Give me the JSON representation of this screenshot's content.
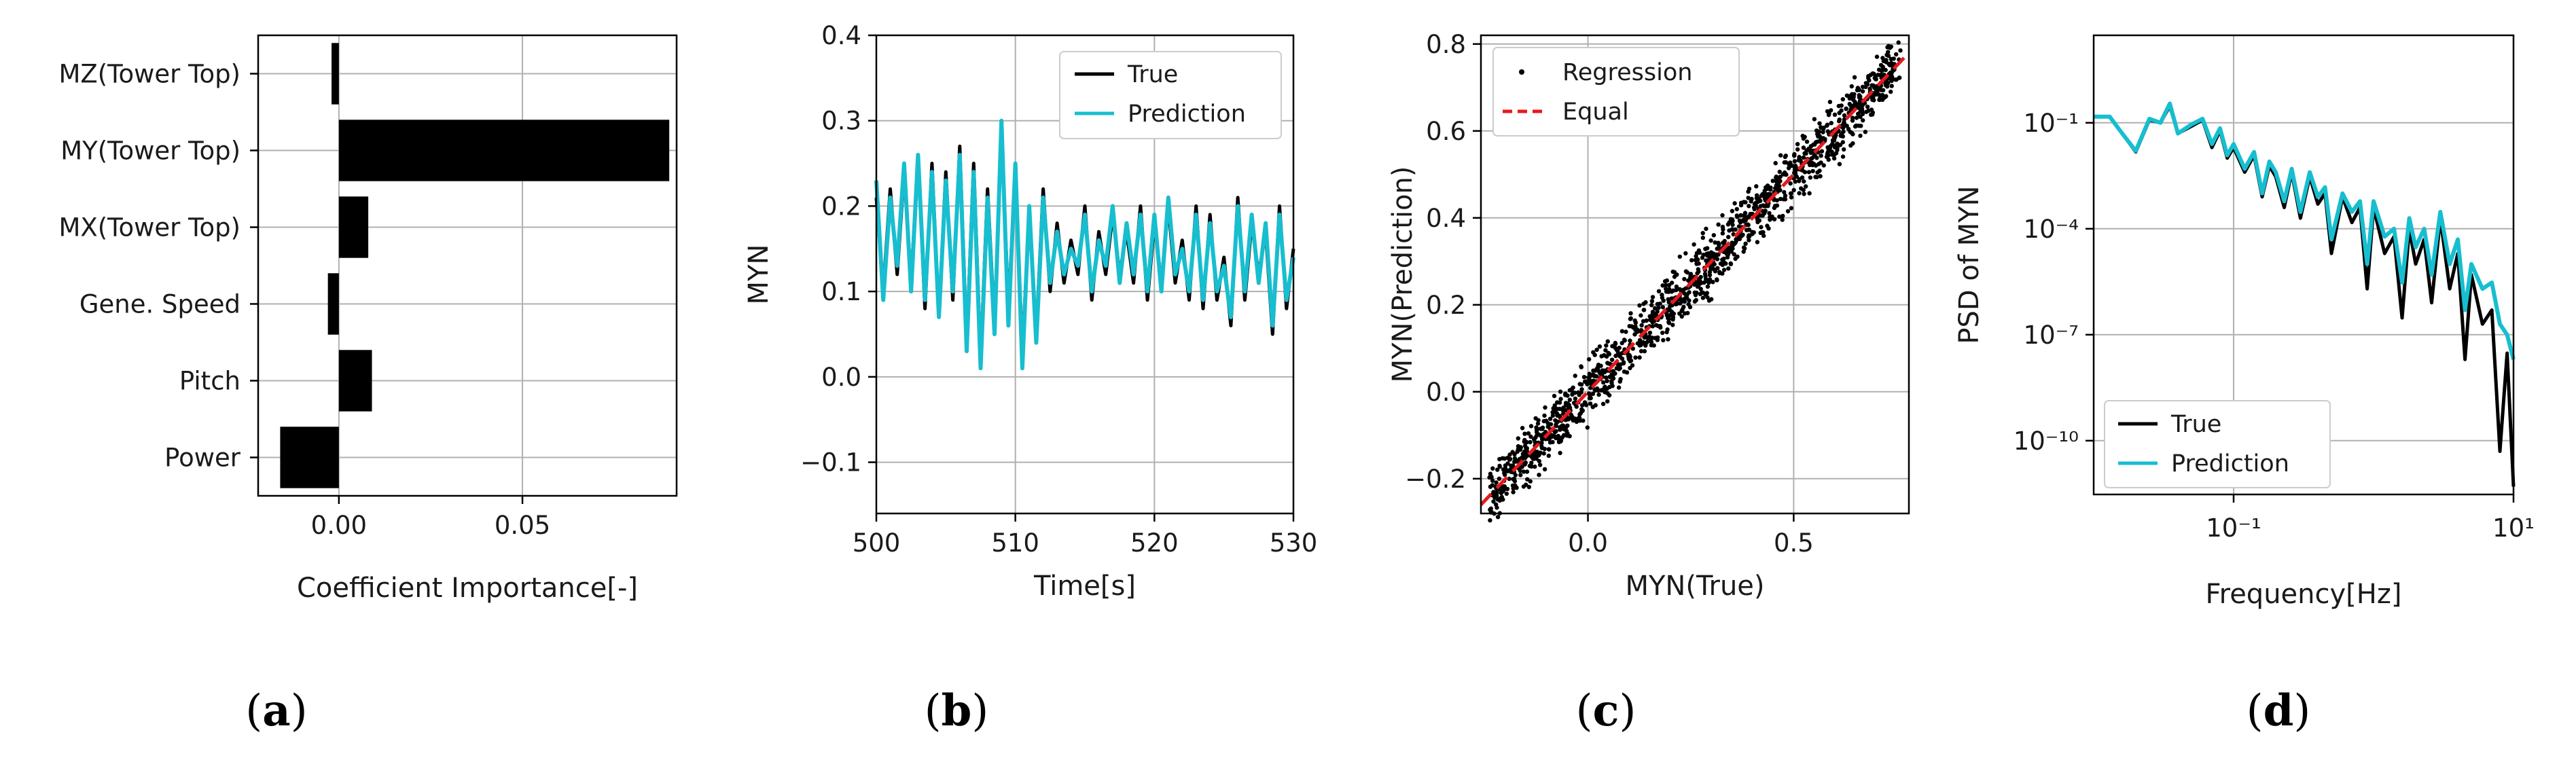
{
  "chart_data": [
    {
      "type": "bar",
      "orientation": "horizontal",
      "panel": "(a)",
      "categories": [
        "MZ(Tower Top)",
        "MY(Tower Top)",
        "MX(Tower Top)",
        "Gene. Speed",
        "Pitch",
        "Power"
      ],
      "values": [
        -0.002,
        0.09,
        0.008,
        -0.003,
        0.009,
        -0.016
      ],
      "xlabel": "Coefficient Importance[-]",
      "ylabel": "",
      "xlim": [
        -0.022,
        0.092
      ],
      "xticks": [
        0.0,
        0.05
      ],
      "xtick_labels": [
        "0.00",
        "0.05"
      ],
      "grid": true,
      "colors": {
        "bar": "#000000"
      }
    },
    {
      "type": "line",
      "panel": "(b)",
      "xlabel": "Time[s]",
      "ylabel": "MYN",
      "xlim": [
        500,
        530
      ],
      "ylim": [
        -0.16,
        0.4
      ],
      "xticks": [
        500,
        510,
        520,
        530
      ],
      "xtick_labels": [
        "500",
        "510",
        "520",
        "530"
      ],
      "yticks": [
        -0.1,
        0.0,
        0.1,
        0.2,
        0.3,
        0.4
      ],
      "ytick_labels": [
        "−0.1",
        "0.0",
        "0.1",
        "0.2",
        "0.3",
        "0.4"
      ],
      "legend": [
        "True",
        "Prediction"
      ],
      "legend_position": "top-right",
      "grid": true,
      "series": [
        {
          "name": "True",
          "color": "#000000",
          "x": [
            500,
            500.5,
            501,
            501.5,
            502,
            502.5,
            503,
            503.5,
            504,
            504.5,
            505,
            505.5,
            506,
            506.5,
            507,
            507.5,
            508,
            508.5,
            509,
            509.5,
            510,
            510.5,
            511,
            511.5,
            512,
            512.5,
            513,
            513.5,
            514,
            514.5,
            515,
            515.5,
            516,
            516.5,
            517,
            517.5,
            518,
            518.5,
            519,
            519.5,
            520,
            520.5,
            521,
            521.5,
            522,
            522.5,
            523,
            523.5,
            524,
            524.5,
            525,
            525.5,
            526,
            526.5,
            527,
            527.5,
            528,
            528.5,
            529,
            529.5,
            530
          ],
          "y": [
            0.21,
            0.1,
            0.22,
            0.12,
            0.24,
            0.11,
            0.26,
            0.08,
            0.25,
            0.07,
            0.24,
            0.09,
            0.27,
            0.04,
            0.25,
            0.02,
            0.22,
            0.06,
            0.29,
            0.08,
            0.24,
            0.03,
            0.19,
            0.05,
            0.22,
            0.1,
            0.18,
            0.11,
            0.16,
            0.12,
            0.2,
            0.09,
            0.17,
            0.12,
            0.19,
            0.12,
            0.17,
            0.11,
            0.2,
            0.09,
            0.18,
            0.11,
            0.2,
            0.11,
            0.16,
            0.09,
            0.2,
            0.08,
            0.19,
            0.09,
            0.14,
            0.06,
            0.21,
            0.09,
            0.18,
            0.12,
            0.17,
            0.05,
            0.2,
            0.08,
            0.15
          ]
        },
        {
          "name": "Prediction",
          "color": "#17BECF",
          "x": [
            500,
            500.5,
            501,
            501.5,
            502,
            502.5,
            503,
            503.5,
            504,
            504.5,
            505,
            505.5,
            506,
            506.5,
            507,
            507.5,
            508,
            508.5,
            509,
            509.5,
            510,
            510.5,
            511,
            511.5,
            512,
            512.5,
            513,
            513.5,
            514,
            514.5,
            515,
            515.5,
            516,
            516.5,
            517,
            517.5,
            518,
            518.5,
            519,
            519.5,
            520,
            520.5,
            521,
            521.5,
            522,
            522.5,
            523,
            523.5,
            524,
            524.5,
            525,
            525.5,
            526,
            526.5,
            527,
            527.5,
            528,
            528.5,
            529,
            529.5,
            530
          ],
          "y": [
            0.23,
            0.09,
            0.21,
            0.13,
            0.25,
            0.1,
            0.26,
            0.09,
            0.24,
            0.07,
            0.23,
            0.1,
            0.26,
            0.03,
            0.24,
            0.01,
            0.21,
            0.05,
            0.3,
            0.06,
            0.25,
            0.01,
            0.2,
            0.04,
            0.21,
            0.11,
            0.17,
            0.12,
            0.15,
            0.13,
            0.19,
            0.1,
            0.16,
            0.13,
            0.2,
            0.11,
            0.18,
            0.12,
            0.19,
            0.1,
            0.19,
            0.1,
            0.21,
            0.12,
            0.15,
            0.1,
            0.19,
            0.09,
            0.18,
            0.1,
            0.13,
            0.07,
            0.2,
            0.1,
            0.19,
            0.11,
            0.18,
            0.06,
            0.19,
            0.09,
            0.14
          ]
        }
      ]
    },
    {
      "type": "scatter",
      "panel": "(c)",
      "xlabel": "MYN(True)",
      "ylabel": "MYN(Prediction)",
      "xlim": [
        -0.26,
        0.78
      ],
      "ylim": [
        -0.28,
        0.82
      ],
      "xticks": [
        0.0,
        0.5
      ],
      "xtick_labels": [
        "0.0",
        "0.5"
      ],
      "yticks": [
        -0.2,
        0.0,
        0.2,
        0.4,
        0.6,
        0.8
      ],
      "ytick_labels": [
        "−0.2",
        "0.0",
        "0.2",
        "0.4",
        "0.6",
        "0.8"
      ],
      "legend": [
        "Regression",
        "Equal"
      ],
      "legend_position": "top-left",
      "grid": true,
      "regression": {
        "x_min": -0.24,
        "x_max": 0.76,
        "band": 0.045
      },
      "equal_line": {
        "x": [
          -0.26,
          0.78
        ],
        "y": [
          -0.26,
          0.78
        ]
      },
      "colors": {
        "scatter": "#000000",
        "equal": "#E41A1C"
      }
    },
    {
      "type": "line",
      "panel": "(d)",
      "scale": "log-log",
      "xlabel": "Frequency[Hz]",
      "ylabel": "PSD of MYN",
      "xlim": [
        0.01,
        10
      ],
      "ylim": [
        3e-12,
        30
      ],
      "xticks": [
        0.1,
        10
      ],
      "xtick_labels": [
        "10⁻¹",
        "10¹"
      ],
      "yticks": [
        1e-10,
        1e-07,
        0.0001,
        0.1
      ],
      "ytick_labels": [
        "10⁻¹⁰",
        "10⁻⁷",
        "10⁻⁴",
        "10⁻¹"
      ],
      "legend": [
        "True",
        "Prediction"
      ],
      "legend_position": "bottom-left",
      "grid": true,
      "series": [
        {
          "name": "True",
          "color": "#000000",
          "x": [
            0.01,
            0.013,
            0.016,
            0.02,
            0.025,
            0.03,
            0.035,
            0.04,
            0.05,
            0.06,
            0.07,
            0.08,
            0.09,
            0.1,
            0.12,
            0.14,
            0.16,
            0.18,
            0.2,
            0.23,
            0.26,
            0.3,
            0.35,
            0.4,
            0.45,
            0.5,
            0.6,
            0.7,
            0.8,
            0.9,
            1.0,
            1.2,
            1.4,
            1.6,
            1.8,
            2.0,
            2.3,
            2.6,
            3.0,
            3.5,
            4.0,
            4.5,
            5.0,
            6.0,
            7.0,
            8.0,
            9.0,
            10.0
          ],
          "y": [
            0.15,
            0.15,
            0.05,
            0.015,
            0.12,
            0.1,
            0.3,
            0.05,
            0.08,
            0.12,
            0.02,
            0.06,
            0.01,
            0.02,
            0.004,
            0.012,
            0.0008,
            0.006,
            0.003,
            0.0004,
            0.004,
            0.0002,
            0.003,
            0.0005,
            0.001,
            2e-05,
            0.0008,
            0.00015,
            0.0004,
            2e-06,
            0.0004,
            2e-05,
            6e-05,
            3e-07,
            0.0001,
            1e-05,
            5e-05,
            8e-07,
            0.0002,
            2e-06,
            2e-05,
            2e-08,
            5e-06,
            2e-07,
            5e-07,
            5e-11,
            3e-08,
            5e-12
          ]
        },
        {
          "name": "Prediction",
          "color": "#17BECF",
          "x": [
            0.01,
            0.013,
            0.016,
            0.02,
            0.025,
            0.03,
            0.035,
            0.04,
            0.05,
            0.06,
            0.07,
            0.08,
            0.09,
            0.1,
            0.12,
            0.14,
            0.16,
            0.18,
            0.2,
            0.23,
            0.26,
            0.3,
            0.35,
            0.4,
            0.45,
            0.5,
            0.6,
            0.7,
            0.8,
            0.9,
            1.0,
            1.2,
            1.4,
            1.6,
            1.8,
            2.0,
            2.3,
            2.6,
            3.0,
            3.5,
            4.0,
            4.5,
            5.0,
            6.0,
            7.0,
            8.0,
            9.0,
            10.0
          ],
          "y": [
            0.15,
            0.15,
            0.05,
            0.016,
            0.13,
            0.1,
            0.35,
            0.05,
            0.09,
            0.13,
            0.025,
            0.07,
            0.012,
            0.025,
            0.005,
            0.015,
            0.001,
            0.008,
            0.004,
            0.0006,
            0.005,
            0.0003,
            0.004,
            0.0008,
            0.0015,
            5e-05,
            0.001,
            0.0003,
            0.0006,
            1e-05,
            0.0006,
            6e-05,
            0.0001,
            3e-06,
            0.0002,
            3e-05,
            0.0001,
            5e-06,
            0.0003,
            1e-05,
            5e-05,
            5e-07,
            1e-05,
            2e-06,
            3e-06,
            2e-07,
            1e-07,
            2e-08
          ]
        }
      ]
    }
  ]
}
